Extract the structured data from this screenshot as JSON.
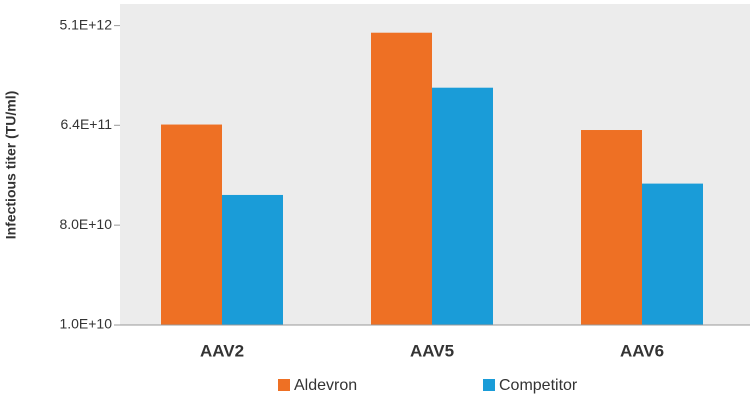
{
  "chart_data": {
    "type": "bar",
    "y_label": "Infectious titer (TU/ml)",
    "log_scale": true,
    "categories": [
      "AAV2",
      "AAV5",
      "AAV6"
    ],
    "series": [
      {
        "name": "Aldevron",
        "color": "#ee7024",
        "values": [
          650000000000,
          4400000000000,
          580000000000
        ]
      },
      {
        "name": "Competitor",
        "color": "#1a9cd8",
        "values": [
          150000000000,
          1400000000000,
          190000000000
        ]
      }
    ],
    "ylim": [
      10000000000,
      8000000000000
    ],
    "yticks": [
      {
        "value": 10000000000,
        "label": "1.0E+10"
      },
      {
        "value": 80000000000,
        "label": "8.0E+10"
      },
      {
        "value": 640000000000,
        "label": "6.4E+11"
      },
      {
        "value": 5100000000000,
        "label": "5.1E+12"
      }
    ],
    "legend": "bottom"
  }
}
